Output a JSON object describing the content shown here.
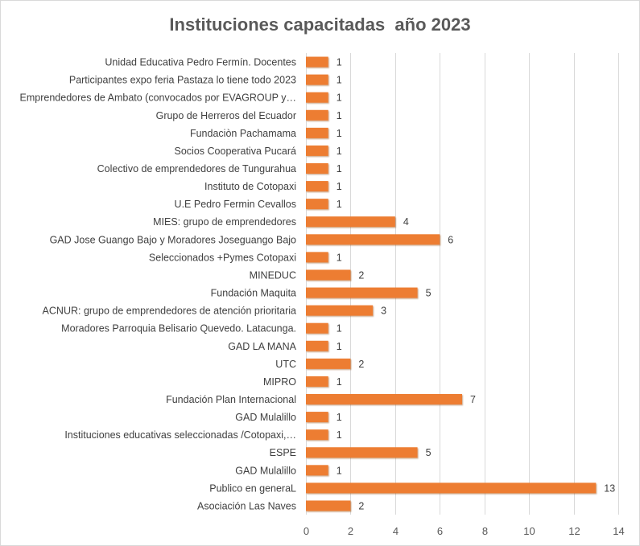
{
  "chart_data": {
    "type": "bar",
    "orientation": "horizontal",
    "title": "Instituciones capacitadas  año 2023",
    "xlabel": "",
    "ylabel": "",
    "categories": [
      "Unidad Educativa Pedro Fermín. Docentes",
      "Participantes expo feria Pastaza lo tiene todo 2023",
      "Emprendedores de Ambato (convocados por EVAGROUP y…",
      "Grupo de Herreros del Ecuador",
      "Fundaciòn Pachamama",
      "Socios Cooperativa Pucará",
      "Colectivo de emprendedores de Tungurahua",
      "Instituto de Cotopaxi",
      "U.E Pedro Fermin Cevallos",
      "MIES: grupo de emprendedores",
      "GAD Jose Guango Bajo y Moradores Joseguango Bajo",
      "Seleccionados +Pymes Cotopaxi",
      "MINEDUC",
      "Fundación Maquita",
      "ACNUR: grupo de emprendedores de atención prioritaria",
      "Moradores Parroquia Belisario Quevedo. Latacunga.",
      "GAD LA MANA",
      "UTC",
      "MIPRO",
      "Fundación Plan Internacional",
      "GAD Mulalillo",
      "Instituciones educativas seleccionadas /Cotopaxi,…",
      "ESPE",
      "GAD Mulalillo",
      "Publico en generaL",
      "Asociación Las Naves"
    ],
    "values": [
      1,
      1,
      1,
      1,
      1,
      1,
      1,
      1,
      1,
      4,
      6,
      1,
      2,
      5,
      3,
      1,
      1,
      2,
      1,
      7,
      1,
      1,
      5,
      1,
      13,
      2
    ],
    "xlim": [
      0,
      14
    ],
    "xticks": [
      0,
      2,
      4,
      6,
      8,
      10,
      12,
      14
    ],
    "data_labels": true,
    "grid": true,
    "legend": "none",
    "colors": {
      "bar": "#ED7D31",
      "bar_shadow": "#8A3F0E",
      "grid": "#D9D9D9",
      "border": "#D9D9D9"
    }
  }
}
